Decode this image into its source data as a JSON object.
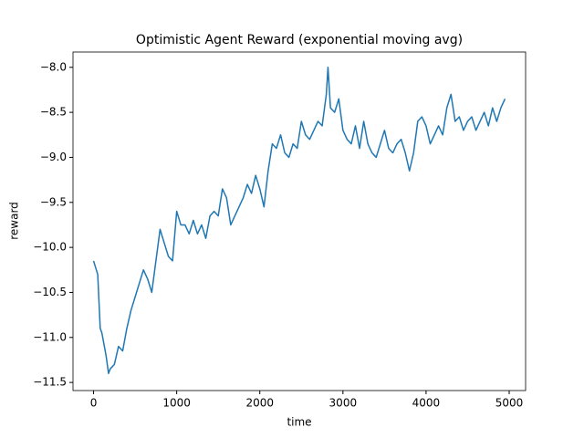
{
  "chart_data": {
    "type": "line",
    "title": "Optimistic Agent Reward (exponential moving avg)",
    "x_label": "time",
    "y_label": "reward",
    "color": "#1f77b4",
    "x": [
      0,
      50,
      80,
      100,
      150,
      180,
      200,
      250,
      300,
      350,
      400,
      450,
      500,
      550,
      600,
      650,
      700,
      750,
      800,
      850,
      900,
      950,
      1000,
      1050,
      1100,
      1150,
      1200,
      1250,
      1300,
      1350,
      1400,
      1450,
      1500,
      1550,
      1600,
      1650,
      1700,
      1750,
      1800,
      1850,
      1900,
      1950,
      2000,
      2050,
      2100,
      2150,
      2200,
      2250,
      2300,
      2350,
      2400,
      2450,
      2500,
      2550,
      2600,
      2650,
      2700,
      2750,
      2800,
      2820,
      2850,
      2900,
      2950,
      3000,
      3050,
      3100,
      3150,
      3200,
      3250,
      3300,
      3350,
      3400,
      3450,
      3500,
      3550,
      3600,
      3650,
      3700,
      3750,
      3800,
      3850,
      3900,
      3950,
      4000,
      4050,
      4100,
      4150,
      4200,
      4250,
      4300,
      4350,
      4400,
      4450,
      4500,
      4550,
      4600,
      4650,
      4700,
      4750,
      4800,
      4850,
      4900,
      4950
    ],
    "values": [
      -10.15,
      -10.3,
      -10.9,
      -10.95,
      -11.2,
      -11.4,
      -11.35,
      -11.3,
      -11.1,
      -11.15,
      -10.9,
      -10.7,
      -10.55,
      -10.4,
      -10.25,
      -10.35,
      -10.5,
      -10.15,
      -9.8,
      -9.95,
      -10.1,
      -10.15,
      -9.6,
      -9.75,
      -9.75,
      -9.85,
      -9.7,
      -9.85,
      -9.75,
      -9.9,
      -9.65,
      -9.6,
      -9.65,
      -9.35,
      -9.45,
      -9.75,
      -9.65,
      -9.55,
      -9.45,
      -9.3,
      -9.4,
      -9.2,
      -9.35,
      -9.55,
      -9.15,
      -8.85,
      -8.9,
      -8.75,
      -8.95,
      -9.0,
      -8.85,
      -8.9,
      -8.6,
      -8.75,
      -8.8,
      -8.7,
      -8.6,
      -8.65,
      -8.3,
      -8.0,
      -8.45,
      -8.5,
      -8.35,
      -8.7,
      -8.8,
      -8.85,
      -8.65,
      -8.9,
      -8.6,
      -8.85,
      -8.95,
      -9.0,
      -8.85,
      -8.7,
      -8.9,
      -8.95,
      -8.85,
      -8.8,
      -8.95,
      -9.15,
      -8.95,
      -8.6,
      -8.55,
      -8.65,
      -8.85,
      -8.75,
      -8.65,
      -8.75,
      -8.45,
      -8.3,
      -8.6,
      -8.55,
      -8.7,
      -8.6,
      -8.55,
      -8.7,
      -8.6,
      -8.5,
      -8.65,
      -8.45,
      -8.6,
      -8.45,
      -8.35
    ],
    "xlim": [
      -247.5,
      5197.5
    ],
    "ylim": [
      -11.59,
      -7.83
    ],
    "xticks": [
      0,
      1000,
      2000,
      3000,
      4000,
      5000
    ],
    "yticks": [
      {
        "value": -11.5,
        "label": "−11.5"
      },
      {
        "value": -11,
        "label": "−11.0"
      },
      {
        "value": -10.5,
        "label": "−10.5"
      },
      {
        "value": -10,
        "label": "−10.0"
      },
      {
        "value": -9.5,
        "label": "−9.5"
      },
      {
        "value": -9,
        "label": "−9.0"
      },
      {
        "value": -8.5,
        "label": "−8.5"
      },
      {
        "value": -8,
        "label": "−8.0"
      }
    ]
  }
}
